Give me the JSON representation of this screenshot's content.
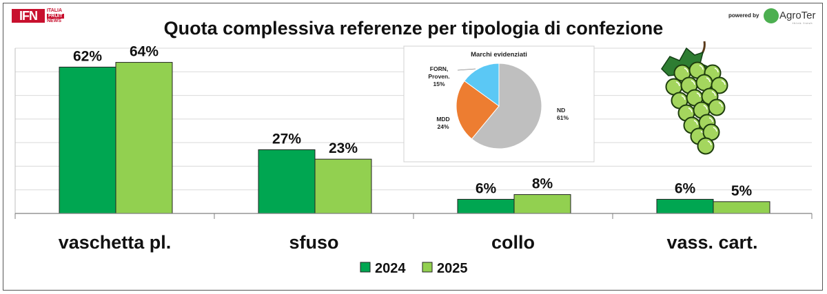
{
  "brand": {
    "logo_text": "IFN",
    "logo_sub": [
      "ITALIA",
      "FRUIT",
      "NEWS"
    ],
    "powered_by": "powered by",
    "partner_name": "AgroTer",
    "partner_tagline": "think fresh"
  },
  "chart_data": [
    {
      "type": "bar",
      "title": "Quota complessiva referenze per tipologia di confezione",
      "categories": [
        "vaschetta pl.",
        "sfuso",
        "collo",
        "vass. cart."
      ],
      "series": [
        {
          "name": "2024",
          "values": [
            62,
            27,
            6,
            6
          ],
          "labels": [
            "62%",
            "27%",
            "6%",
            "6%"
          ],
          "color": "#00a651"
        },
        {
          "name": "2025",
          "values": [
            64,
            23,
            8,
            5
          ],
          "labels": [
            "64%",
            "23%",
            "8%",
            "5%"
          ],
          "color": "#92d050"
        }
      ],
      "ylim": [
        0,
        70
      ],
      "grid": true,
      "legend": "bottom",
      "xlabel": "",
      "ylabel": ""
    },
    {
      "type": "pie",
      "title": "Marchi evidenziati",
      "slices": [
        {
          "label": "ND",
          "value": 61,
          "display": "61%",
          "color": "#bfbfbf"
        },
        {
          "label": "MDD",
          "value": 24,
          "display": "24%",
          "color": "#ed7d31"
        },
        {
          "label": "FORN, Proven.",
          "value": 15,
          "display": "15%",
          "color": "#5bc8f5"
        }
      ]
    }
  ],
  "decoration": {
    "icon": "grape-bunch-icon"
  }
}
